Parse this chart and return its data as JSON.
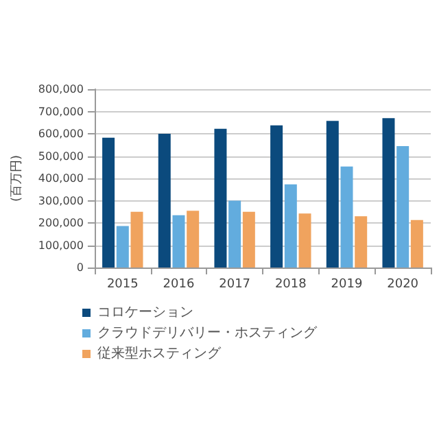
{
  "chart_data": {
    "type": "bar",
    "ylabel": "(百万円)",
    "categories": [
      "2015",
      "2016",
      "2017",
      "2018",
      "2019",
      "2020"
    ],
    "series": [
      {
        "name": "コロケーション",
        "color": "#0b4a7d",
        "values": [
          582000,
          600000,
          622000,
          638000,
          658000,
          670000
        ]
      },
      {
        "name": "クラウドデリバリー・ホスティング",
        "color": "#62acde",
        "values": [
          186000,
          235000,
          300000,
          373000,
          453000,
          545000
        ]
      },
      {
        "name": "従来型ホスティング",
        "color": "#f0a35e",
        "values": [
          250000,
          255000,
          250000,
          242000,
          230000,
          213000
        ]
      }
    ],
    "ylim": [
      0,
      800000
    ],
    "yticks": [
      0,
      {
        "value": 100000,
        "label": "100,000"
      },
      {
        "value": 200000,
        "label": "200,000"
      },
      {
        "value": 300000,
        "label": "300,000"
      },
      {
        "value": 400000,
        "label": "400,000"
      },
      {
        "value": 500000,
        "label": "500,000"
      },
      {
        "value": 600000,
        "label": "600,000"
      },
      {
        "value": 700000,
        "label": "700,000"
      },
      {
        "value": 800000,
        "label": "800,000"
      }
    ],
    "grid": "y",
    "legend": "bottom"
  }
}
